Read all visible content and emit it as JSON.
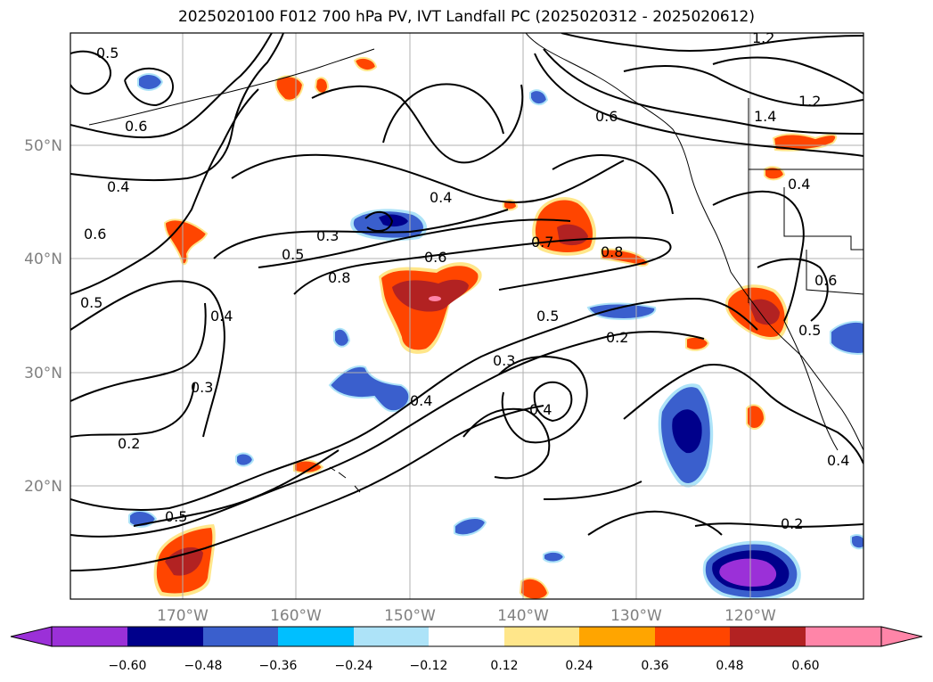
{
  "title": "2025020100 F012 700 hPa PV, IVT Landfall PC (2025020312 - 2025020612)",
  "colors": {
    "contour": "#000000",
    "grid": "#b0b0b0",
    "axis_label": "#808080"
  },
  "axes": {
    "lon_labels": [
      "170°W",
      "160°W",
      "150°W",
      "140°W",
      "130°W",
      "120°W"
    ],
    "lat_labels": [
      "50°N",
      "40°N",
      "30°N",
      "20°N"
    ]
  },
  "colorbar": {
    "colors": [
      "#9b30d8",
      "#00008b",
      "#3a5fcd",
      "#00bfff",
      "#ade3f8",
      "#ffffff",
      "#ffe68a",
      "#ffa500",
      "#ff4500",
      "#b22222",
      "#ff85a8"
    ],
    "tick_labels": [
      "−0.60",
      "−0.48",
      "−0.36",
      "−0.24",
      "−0.12",
      "0.12",
      "0.24",
      "0.36",
      "0.48",
      "0.60"
    ]
  },
  "contour_labels": [
    "0.5",
    "0.6",
    "0.4",
    "0.6",
    "0.5",
    "0.4",
    "0.3",
    "0.2",
    "0.3",
    "0.5",
    "0.8",
    "0.4",
    "0.6",
    "0.7",
    "0.8",
    "0.5",
    "0.2",
    "0.3",
    "0.4",
    "0.4",
    "0.6",
    "1.2",
    "1.4",
    "1.2",
    "0.4",
    "0.6",
    "0.5",
    "0.4",
    "0.2",
    "0.5"
  ]
}
